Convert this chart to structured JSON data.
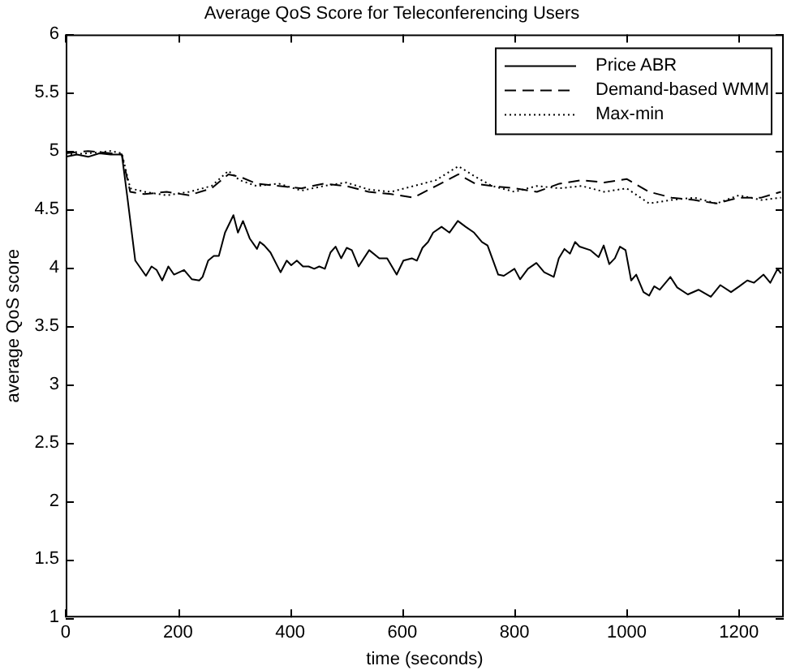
{
  "chart_data": {
    "type": "line",
    "title": "Average QoS Score for Teleconferencing Users",
    "xlabel": "time (seconds)",
    "ylabel": "average QoS score",
    "xlim": [
      0,
      1280
    ],
    "xticks": [
      0,
      200,
      400,
      600,
      800,
      1000,
      1200
    ],
    "ylim": [
      1,
      6
    ],
    "yticks": [
      1,
      1.5,
      2,
      2.5,
      3,
      3.5,
      4,
      4.5,
      5,
      5.5,
      6
    ],
    "grid": false,
    "legend": "top right",
    "marker": "none",
    "series": [
      {
        "name": "Price ABR",
        "color": "#000000",
        "line_style": "solid",
        "x": [
          0,
          20,
          40,
          60,
          80,
          100,
          110,
          124,
          143,
          153,
          162,
          172,
          183,
          193,
          211,
          225,
          238,
          244,
          254,
          264,
          273,
          284,
          299,
          307,
          316,
          328,
          341,
          346,
          354,
          365,
          383,
          394,
          402,
          412,
          423,
          433,
          443,
          452,
          462,
          472,
          481,
          491,
          501,
          510,
          522,
          541,
          559,
          573,
          590,
          602,
          617,
          626,
          636,
          646,
          655,
          670,
          684,
          699,
          713,
          728,
          742,
          752,
          771,
          781,
          800,
          810,
          824,
          839,
          853,
          870,
          879,
          889,
          899,
          908,
          916,
          935,
          950,
          959,
          969,
          979,
          988,
          998,
          1008,
          1017,
          1030,
          1040,
          1049,
          1059,
          1078,
          1090,
          1109,
          1128,
          1150,
          1167,
          1186,
          1201,
          1215,
          1227,
          1244,
          1256,
          1269,
          1275
        ],
        "values": [
          4.95,
          4.97,
          4.95,
          4.98,
          4.97,
          4.97,
          4.6,
          4.06,
          3.93,
          4.01,
          3.98,
          3.89,
          4.01,
          3.94,
          3.98,
          3.9,
          3.89,
          3.92,
          4.06,
          4.1,
          4.1,
          4.3,
          4.45,
          4.3,
          4.4,
          4.25,
          4.16,
          4.22,
          4.19,
          4.13,
          3.96,
          4.06,
          4.02,
          4.06,
          4.01,
          4.01,
          3.99,
          4.01,
          3.99,
          4.13,
          4.18,
          4.08,
          4.17,
          4.15,
          4.01,
          4.15,
          4.08,
          4.08,
          3.94,
          4.06,
          4.08,
          4.06,
          4.17,
          4.22,
          4.3,
          4.35,
          4.3,
          4.4,
          4.35,
          4.3,
          4.22,
          4.19,
          3.94,
          3.93,
          3.99,
          3.9,
          3.99,
          4.04,
          3.96,
          3.92,
          4.08,
          4.16,
          4.12,
          4.22,
          4.18,
          4.15,
          4.09,
          4.19,
          4.03,
          4.08,
          4.18,
          4.15,
          3.89,
          3.94,
          3.79,
          3.76,
          3.84,
          3.81,
          3.92,
          3.83,
          3.77,
          3.81,
          3.75,
          3.85,
          3.79,
          3.84,
          3.89,
          3.87,
          3.94,
          3.87,
          3.99,
          3.95
        ]
      },
      {
        "name": "Demand-based WMM",
        "color": "#000000",
        "line_style": "dashed",
        "x": [
          0,
          40,
          80,
          100,
          115,
          140,
          180,
          220,
          260,
          290,
          310,
          340,
          380,
          420,
          460,
          500,
          540,
          580,
          620,
          660,
          700,
          730,
          760,
          800,
          840,
          880,
          920,
          960,
          1000,
          1040,
          1080,
          1120,
          1160,
          1200,
          1240,
          1275
        ],
        "values": [
          4.98,
          5.0,
          4.98,
          4.97,
          4.65,
          4.63,
          4.65,
          4.62,
          4.68,
          4.8,
          4.78,
          4.72,
          4.7,
          4.68,
          4.72,
          4.7,
          4.65,
          4.63,
          4.6,
          4.7,
          4.8,
          4.72,
          4.7,
          4.68,
          4.65,
          4.72,
          4.75,
          4.73,
          4.76,
          4.65,
          4.6,
          4.58,
          4.55,
          4.6,
          4.6,
          4.65
        ]
      },
      {
        "name": "Max-min",
        "color": "#000000",
        "line_style": "dotted",
        "x": [
          0,
          40,
          80,
          100,
          115,
          140,
          180,
          220,
          260,
          290,
          310,
          340,
          380,
          420,
          460,
          500,
          540,
          580,
          620,
          660,
          700,
          730,
          760,
          800,
          840,
          880,
          920,
          960,
          1000,
          1040,
          1080,
          1120,
          1160,
          1200,
          1240,
          1275
        ],
        "values": [
          4.97,
          4.98,
          5.0,
          4.98,
          4.68,
          4.65,
          4.62,
          4.65,
          4.7,
          4.83,
          4.75,
          4.7,
          4.72,
          4.66,
          4.7,
          4.73,
          4.67,
          4.65,
          4.7,
          4.75,
          4.87,
          4.78,
          4.7,
          4.65,
          4.7,
          4.68,
          4.7,
          4.65,
          4.68,
          4.55,
          4.58,
          4.6,
          4.55,
          4.62,
          4.58,
          4.6
        ]
      }
    ]
  }
}
